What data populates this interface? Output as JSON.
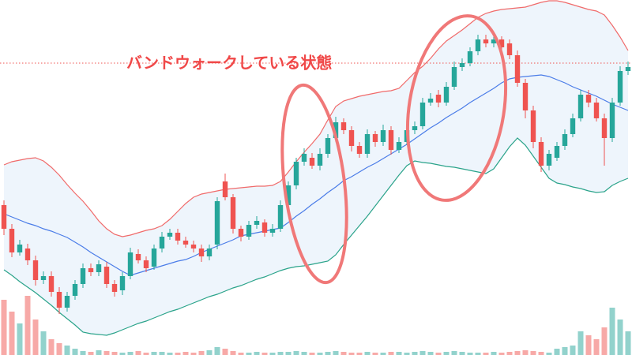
{
  "chart_data": {
    "type": "candlestick",
    "annotation": "バンドウォークしている状態",
    "ylim": [
      0,
      450
    ],
    "up_color": "#26a69a",
    "down_color": "#ef5350",
    "open": [
      190,
      160,
      130,
      135,
      120,
      95,
      100,
      80,
      60,
      75,
      90,
      110,
      105,
      112,
      90,
      82,
      100,
      128,
      120,
      112,
      135,
      150,
      155,
      145,
      140,
      135,
      125,
      140,
      220,
      200,
      160,
      150,
      165,
      168,
      155,
      160,
      190,
      215,
      245,
      250,
      240,
      255,
      275,
      295,
      285,
      265,
      255,
      280,
      270,
      285,
      260,
      270,
      285,
      290,
      320,
      330,
      320,
      340,
      365,
      370,
      385,
      400,
      395,
      400,
      395,
      380,
      345,
      310,
      270,
      240,
      250,
      265,
      280,
      300,
      330,
      320,
      300,
      275,
      320,
      360
    ],
    "high": [
      196,
      166,
      146,
      141,
      126,
      106,
      106,
      86,
      80,
      95,
      116,
      116,
      120,
      118,
      95,
      105,
      136,
      134,
      125,
      140,
      156,
      160,
      160,
      150,
      145,
      140,
      140,
      200,
      230,
      204,
      164,
      170,
      176,
      172,
      166,
      196,
      220,
      250,
      262,
      256,
      262,
      280,
      302,
      300,
      290,
      270,
      286,
      284,
      292,
      290,
      276,
      290,
      296,
      326,
      332,
      336,
      346,
      372,
      376,
      390,
      406,
      406,
      406,
      404,
      400,
      386,
      350,
      316,
      276,
      260,
      270,
      286,
      306,
      336,
      336,
      326,
      306,
      326,
      366,
      372
    ],
    "low": [
      152,
      124,
      126,
      114,
      88,
      90,
      74,
      52,
      55,
      70,
      85,
      100,
      100,
      85,
      74,
      76,
      96,
      116,
      105,
      108,
      130,
      146,
      140,
      136,
      130,
      118,
      120,
      134,
      196,
      154,
      144,
      146,
      160,
      150,
      150,
      156,
      186,
      210,
      240,
      236,
      234,
      250,
      270,
      280,
      258,
      250,
      250,
      264,
      265,
      254,
      256,
      266,
      280,
      286,
      316,
      314,
      316,
      336,
      360,
      366,
      380,
      390,
      390,
      385,
      375,
      340,
      300,
      262,
      232,
      234,
      246,
      260,
      276,
      296,
      314,
      296,
      240,
      270,
      316,
      355
    ],
    "close": [
      160,
      130,
      140,
      120,
      95,
      100,
      80,
      60,
      75,
      90,
      110,
      105,
      115,
      90,
      80,
      100,
      130,
      120,
      110,
      135,
      150,
      155,
      145,
      140,
      135,
      125,
      135,
      195,
      200,
      160,
      150,
      165,
      170,
      155,
      160,
      190,
      215,
      245,
      255,
      240,
      255,
      275,
      295,
      285,
      265,
      255,
      280,
      270,
      285,
      260,
      270,
      285,
      290,
      320,
      325,
      320,
      340,
      365,
      370,
      385,
      400,
      395,
      400,
      390,
      380,
      345,
      310,
      270,
      240,
      255,
      265,
      280,
      300,
      330,
      320,
      300,
      275,
      320,
      360,
      365
    ],
    "bands": [
      {
        "color": "#f06a6a",
        "values": [
          241,
          245,
          247,
          249,
          250,
          246,
          238,
          228,
          216,
          205,
          195,
          183,
          170,
          160,
          153,
          150,
          152,
          155,
          158,
          160,
          164,
          172,
          182,
          192,
          200,
          204,
          206,
          208,
          210,
          211,
          212,
          213,
          214,
          214,
          215,
          220,
          232,
          245,
          257,
          268,
          280,
          298,
          315,
          322,
          325,
          328,
          330,
          332,
          334,
          335,
          338,
          348,
          358,
          366,
          376,
          388,
          398,
          405,
          412,
          420,
          428,
          433,
          436,
          438,
          439,
          440,
          441,
          444,
          447,
          449,
          449,
          447,
          444,
          441,
          438,
          436,
          431,
          418,
          403,
          386
        ]
      },
      {
        "color": "#4a7ce8",
        "values": [
          179,
          175,
          171,
          167,
          164,
          160,
          157,
          153,
          149,
          143,
          137,
          130,
          124,
          118,
          112,
          106,
          101,
          104,
          107,
          110,
          113,
          116,
          119,
          121,
          125,
          130,
          134,
          138,
          142,
          146,
          151,
          153,
          155,
          157,
          159,
          161,
          168,
          176,
          183,
          191,
          198,
          206,
          213,
          221,
          226,
          232,
          238,
          243,
          249,
          255,
          261,
          267,
          274,
          281,
          288,
          294,
          301,
          307,
          313,
          320,
          326,
          332,
          338,
          345,
          350,
          352,
          353,
          354,
          355,
          353,
          349,
          345,
          340,
          336,
          332,
          328,
          323,
          318,
          314,
          310
        ]
      },
      {
        "color": "#2aa38a",
        "values": [
          108,
          101,
          93,
          86,
          79,
          71,
          63,
          54,
          46,
          38,
          29,
          27,
          26,
          25,
          28,
          32,
          36,
          40,
          43,
          47,
          51,
          55,
          58,
          62,
          66,
          70,
          74,
          77,
          81,
          85,
          88,
          92,
          96,
          99,
          103,
          107,
          110,
          112,
          113,
          115,
          117,
          119,
          127,
          140,
          152,
          164,
          176,
          189,
          202,
          215,
          228,
          240,
          246,
          244,
          243,
          241,
          239,
          238,
          236,
          234,
          232,
          230,
          236,
          250,
          264,
          275,
          266,
          252,
          238,
          224,
          218,
          216,
          213,
          211,
          208,
          206,
          207,
          215,
          220,
          224
        ]
      }
    ],
    "band_fill": "#eef5fc",
    "volume": [
      70,
      55,
      40,
      75,
      45,
      30,
      20,
      15,
      12,
      8,
      5,
      4,
      6,
      5,
      4,
      3,
      4,
      5,
      3,
      4,
      4,
      3,
      3,
      4,
      3,
      5,
      6,
      10,
      8,
      5,
      3,
      3,
      4,
      3,
      3,
      4,
      4,
      5,
      4,
      3,
      3,
      4,
      5,
      4,
      3,
      3,
      4,
      3,
      3,
      4,
      4,
      3,
      4,
      5,
      4,
      3,
      4,
      5,
      4,
      3,
      3,
      3,
      4,
      3,
      4,
      5,
      6,
      5,
      4,
      3,
      8,
      10,
      12,
      30,
      25,
      20,
      35,
      60,
      45,
      30
    ],
    "volume_lim": [
      0,
      100
    ],
    "price_line": 370
  }
}
